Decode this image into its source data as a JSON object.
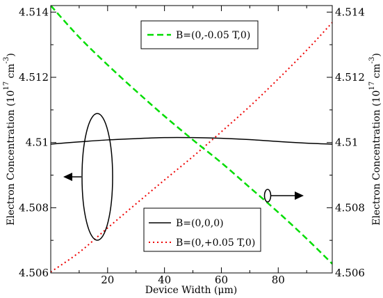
{
  "chart_data": {
    "type": "line",
    "title": "",
    "xlabel": "Device Width (μm)",
    "ylabel_left": "Electron Concentration (10",
    "ylabel_right": "Electron Concentration (10",
    "ylabel_exp": "17",
    "ylabel_unit": " cm",
    "ylabel_unit_exp": "-3",
    "ylabel_close": ")",
    "xlim": [
      0,
      99
    ],
    "ylim": [
      4.506,
      4.5142
    ],
    "x_ticks": [
      20,
      40,
      60,
      80
    ],
    "x_tick_labels": [
      "20",
      "40",
      "60",
      "80"
    ],
    "y_ticks": [
      4.506,
      4.508,
      4.51,
      4.512,
      4.514
    ],
    "y_tick_labels_left": [
      "4.506",
      "4.508",
      "4.51",
      "4.512",
      "4.514"
    ],
    "y_tick_labels_right": [
      "4.506",
      "4.508",
      "4.51",
      "4.512",
      "4.514"
    ],
    "grid": false,
    "series": [
      {
        "name": "B=(0,0,0)",
        "axis": "left",
        "color": "#000000",
        "dash": "solid",
        "x": [
          0,
          10,
          20,
          30,
          40,
          50,
          60,
          70,
          80,
          90,
          99
        ],
        "y": [
          4.50995,
          4.51002,
          4.51008,
          4.51012,
          4.51015,
          4.51015,
          4.51013,
          4.51009,
          4.51003,
          4.50998,
          4.50995
        ]
      },
      {
        "name": "B=(0,+0.05 T,0)",
        "axis": "left",
        "color": "#ee0000",
        "dash": "dotted",
        "x": [
          0,
          10,
          20,
          30,
          40,
          50,
          60,
          70,
          80,
          90,
          99
        ],
        "y": [
          4.50603,
          4.50663,
          4.50738,
          4.50812,
          4.50885,
          4.50957,
          4.51033,
          4.51111,
          4.51195,
          4.51283,
          4.51368
        ]
      },
      {
        "name": "B=(0,-0.05 T,0)",
        "axis": "right",
        "color": "#00dd00",
        "dash": "dashed",
        "x": [
          0,
          10,
          20,
          30,
          40,
          50,
          60,
          70,
          80,
          90,
          99
        ],
        "y": [
          4.5142,
          4.51323,
          4.51238,
          4.51158,
          4.51081,
          4.51008,
          4.50938,
          4.50862,
          4.50786,
          4.50705,
          4.50628
        ]
      }
    ],
    "legend_top": {
      "position": "top-center",
      "entries": [
        "B=(0,-0.05 T,0)"
      ]
    },
    "legend_bottom": {
      "position": "bottom-center",
      "entries": [
        "B=(0,0,0)",
        "B=(0,+0.05 T,0)"
      ]
    },
    "annotations": [
      {
        "type": "ellipse-arrow",
        "points_to": "left-axis"
      },
      {
        "type": "ellipse-arrow",
        "points_to": "right-axis"
      }
    ]
  }
}
